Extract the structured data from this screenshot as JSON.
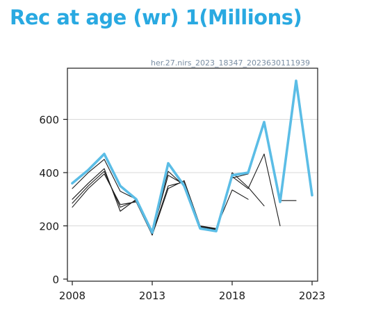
{
  "title": "Rec at age (wr) 1(Millions)",
  "chart_data": {
    "type": "line",
    "title": "Rec at age (wr) 1(Millions)",
    "subtitle": "her.27.nirs_2023_18347_2023630111939",
    "xlabel": "",
    "ylabel": "",
    "xlim": [
      2008,
      2023
    ],
    "ylim": [
      0,
      760
    ],
    "x_ticks": [
      "2008",
      "2013",
      "2018",
      "2023"
    ],
    "y_ticks": [
      "0",
      "200",
      "400",
      "600"
    ],
    "grid": "horizontal",
    "colors": {
      "current": "#5bbde6",
      "previous": "#1a1a1a",
      "title": "#29a9e1",
      "subtitle": "#7a8ea3",
      "grid": "#d9d9d9"
    },
    "series": [
      {
        "role": "previous",
        "x": [
          2008,
          2009,
          2010,
          2011,
          2012,
          2013,
          2014,
          2015,
          2016,
          2017,
          2018,
          2019
        ],
        "values": [
          270,
          340,
          395,
          280,
          290,
          165,
          340,
          370,
          200,
          190,
          335,
          300
        ]
      },
      {
        "role": "previous",
        "x": [
          2008,
          2009,
          2010,
          2011,
          2012,
          2013,
          2014,
          2015,
          2016,
          2017,
          2018,
          2019,
          2020
        ],
        "values": [
          285,
          350,
          405,
          270,
          295,
          170,
          350,
          365,
          198,
          188,
          400,
          345,
          275
        ]
      },
      {
        "role": "previous",
        "x": [
          2008,
          2009,
          2010,
          2011,
          2012,
          2013,
          2014,
          2015,
          2016,
          2017,
          2018,
          2019,
          2020,
          2021
        ],
        "values": [
          300,
          360,
          415,
          255,
          300,
          175,
          405,
          350,
          195,
          186,
          385,
          340,
          470,
          200
        ]
      },
      {
        "role": "previous",
        "x": [
          2008,
          2009,
          2010,
          2011,
          2012,
          2013,
          2014,
          2015,
          2016,
          2017,
          2018,
          2019,
          2020,
          2021,
          2022
        ],
        "values": [
          340,
          400,
          450,
          330,
          300,
          172,
          390,
          355,
          190,
          182,
          380,
          395,
          590,
          295,
          295
        ]
      },
      {
        "role": "current",
        "x": [
          2008,
          2009,
          2010,
          2011,
          2012,
          2013,
          2014,
          2015,
          2016,
          2017,
          2018,
          2019,
          2020,
          2021,
          2022,
          2023
        ],
        "values": [
          360,
          410,
          470,
          350,
          300,
          175,
          435,
          350,
          190,
          180,
          390,
          400,
          590,
          290,
          745,
          315
        ]
      }
    ]
  }
}
